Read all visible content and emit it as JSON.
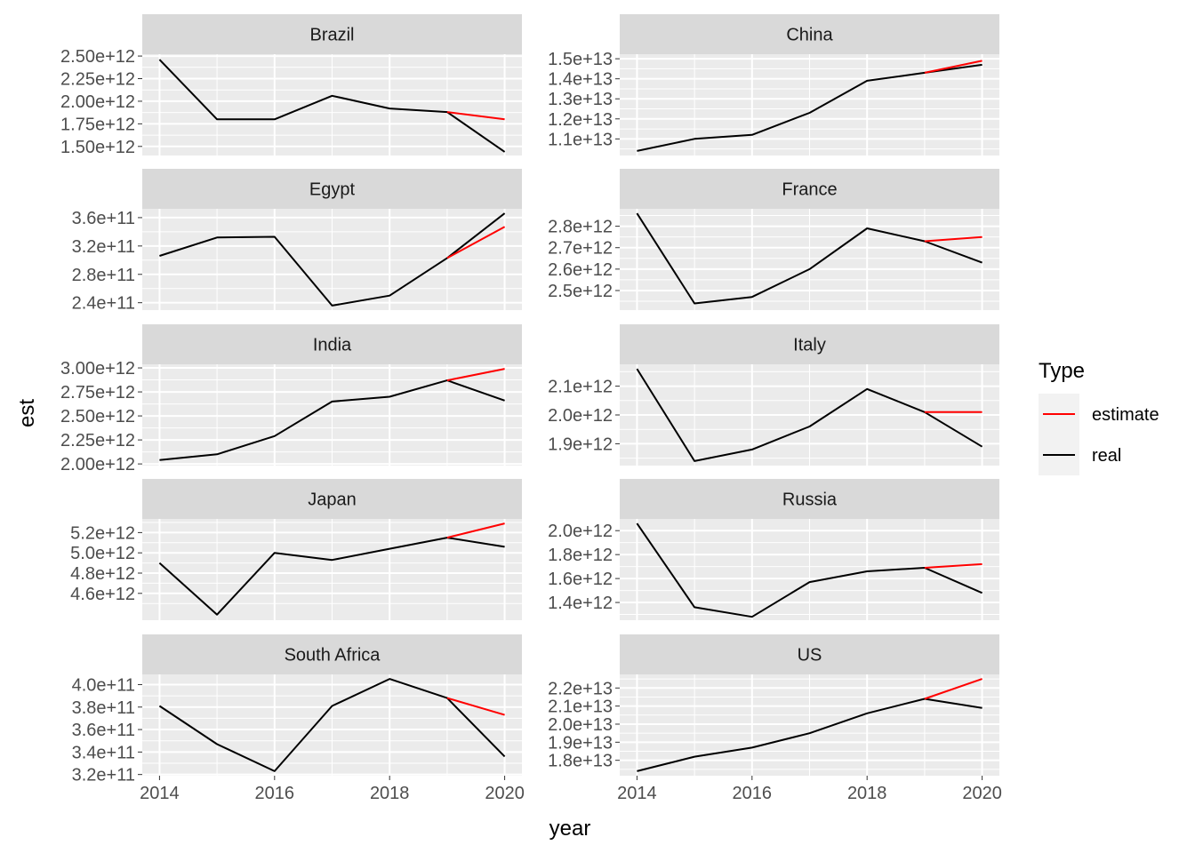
{
  "chart_data": {
    "type": "line",
    "xlabel": "year",
    "ylabel": "est",
    "x_ticks": [
      2014,
      2016,
      2018,
      2020
    ],
    "legend": {
      "title": "Type",
      "entries": [
        {
          "label": "estimate",
          "color": "#ff0000"
        },
        {
          "label": "real",
          "color": "#000000"
        }
      ],
      "position": "right"
    },
    "colors": {
      "panel_bg": "#ebebeb",
      "strip_bg": "#d9d9d9",
      "grid": "#ffffff",
      "estimate": "#ff0000",
      "real": "#000000"
    },
    "panels": [
      {
        "title": "Brazil",
        "ylim": [
          1450000000000.0,
          2470000000000.0
        ],
        "y_ticks": [
          1500000000000.0,
          1750000000000.0,
          2000000000000.0,
          2250000000000.0,
          2500000000000.0
        ],
        "y_tick_labels": [
          "1.50e+12",
          "1.75e+12",
          "2.00e+12",
          "2.25e+12",
          "2.50e+12"
        ],
        "series": [
          {
            "name": "real",
            "x": [
              2014,
              2015,
              2016,
              2017,
              2018,
              2019,
              2020
            ],
            "values": [
              2460000000000.0,
              1800000000000.0,
              1800000000000.0,
              2060000000000.0,
              1920000000000.0,
              1880000000000.0,
              1440000000000.0
            ]
          },
          {
            "name": "estimate",
            "x": [
              2019,
              2020
            ],
            "values": [
              1880000000000.0,
              1800000000000.0
            ]
          }
        ]
      },
      {
        "title": "China",
        "ylim": [
          10400000000000.0,
          15000000000000.0
        ],
        "y_ticks": [
          11000000000000.0,
          12000000000000.0,
          13000000000000.0,
          14000000000000.0,
          15000000000000.0
        ],
        "y_tick_labels": [
          "1.1e+13",
          "1.2e+13",
          "1.3e+13",
          "1.4e+13",
          "1.5e+13"
        ],
        "series": [
          {
            "name": "real",
            "x": [
              2014,
              2015,
              2016,
              2017,
              2018,
              2019,
              2020
            ],
            "values": [
              10400000000000.0,
              11000000000000.0,
              11200000000000.0,
              12300000000000.0,
              13900000000000.0,
              14300000000000.0,
              14700000000000.0
            ]
          },
          {
            "name": "estimate",
            "x": [
              2019,
              2020
            ],
            "values": [
              14300000000000.0,
              14900000000000.0
            ]
          }
        ]
      },
      {
        "title": "Egypt",
        "ylim": [
          236000000000.0,
          366000000000.0
        ],
        "y_ticks": [
          240000000000.0,
          280000000000.0,
          320000000000.0,
          360000000000.0
        ],
        "y_tick_labels": [
          "2.4e+11",
          "2.8e+11",
          "3.2e+11",
          "3.6e+11"
        ],
        "series": [
          {
            "name": "real",
            "x": [
              2014,
              2015,
              2016,
              2017,
              2018,
              2019,
              2020
            ],
            "values": [
              306000000000.0,
              332000000000.0,
              333000000000.0,
              236000000000.0,
              250000000000.0,
              303000000000.0,
              366000000000.0
            ]
          },
          {
            "name": "estimate",
            "x": [
              2019,
              2020
            ],
            "values": [
              303000000000.0,
              347000000000.0
            ]
          }
        ]
      },
      {
        "title": "France",
        "ylim": [
          2430000000000.0,
          2860000000000.0
        ],
        "y_ticks": [
          2500000000000.0,
          2600000000000.0,
          2700000000000.0,
          2800000000000.0
        ],
        "y_tick_labels": [
          "2.5e+12",
          "2.6e+12",
          "2.7e+12",
          "2.8e+12"
        ],
        "series": [
          {
            "name": "real",
            "x": [
              2014,
              2015,
              2016,
              2017,
              2018,
              2019,
              2020
            ],
            "values": [
              2860000000000.0,
              2440000000000.0,
              2470000000000.0,
              2600000000000.0,
              2790000000000.0,
              2730000000000.0,
              2630000000000.0
            ]
          },
          {
            "name": "estimate",
            "x": [
              2019,
              2020
            ],
            "values": [
              2730000000000.0,
              2750000000000.0
            ]
          }
        ]
      },
      {
        "title": "India",
        "ylim": [
          2030000000000.0,
          2990000000000.0
        ],
        "y_ticks": [
          2000000000000.0,
          2250000000000.0,
          2500000000000.0,
          2750000000000.0,
          3000000000000.0
        ],
        "y_tick_labels": [
          "2.00e+12",
          "2.25e+12",
          "2.50e+12",
          "2.75e+12",
          "3.00e+12"
        ],
        "series": [
          {
            "name": "real",
            "x": [
              2014,
              2015,
              2016,
              2017,
              2018,
              2019,
              2020
            ],
            "values": [
              2040000000000.0,
              2100000000000.0,
              2290000000000.0,
              2650000000000.0,
              2700000000000.0,
              2870000000000.0,
              2660000000000.0
            ]
          },
          {
            "name": "estimate",
            "x": [
              2019,
              2020
            ],
            "values": [
              2870000000000.0,
              2990000000000.0
            ]
          }
        ]
      },
      {
        "title": "Italy",
        "ylim": [
          1840000000000.0,
          2160000000000.0
        ],
        "y_ticks": [
          1900000000000.0,
          2000000000000.0,
          2100000000000.0
        ],
        "y_tick_labels": [
          "1.9e+12",
          "2.0e+12",
          "2.1e+12"
        ],
        "series": [
          {
            "name": "real",
            "x": [
              2014,
              2015,
              2016,
              2017,
              2018,
              2019,
              2020
            ],
            "values": [
              2160000000000.0,
              1840000000000.0,
              1880000000000.0,
              1960000000000.0,
              2090000000000.0,
              2010000000000.0,
              1890000000000.0
            ]
          },
          {
            "name": "estimate",
            "x": [
              2019,
              2020
            ],
            "values": [
              2010000000000.0,
              2010000000000.0
            ]
          }
        ]
      },
      {
        "title": "Japan",
        "ylim": [
          4380000000000.0,
          5290000000000.0
        ],
        "y_ticks": [
          4600000000000.0,
          4800000000000.0,
          5000000000000.0,
          5200000000000.0
        ],
        "y_tick_labels": [
          "4.6e+12",
          "4.8e+12",
          "5.0e+12",
          "5.2e+12"
        ],
        "series": [
          {
            "name": "real",
            "x": [
              2014,
              2015,
              2016,
              2017,
              2018,
              2019,
              2020
            ],
            "values": [
              4900000000000.0,
              4390000000000.0,
              5000000000000.0,
              4930000000000.0,
              5040000000000.0,
              5150000000000.0,
              5060000000000.0
            ]
          },
          {
            "name": "estimate",
            "x": [
              2019,
              2020
            ],
            "values": [
              5150000000000.0,
              5290000000000.0
            ]
          }
        ]
      },
      {
        "title": "Russia",
        "ylim": [
          1290000000000.0,
          2060000000000.0
        ],
        "y_ticks": [
          1400000000000.0,
          1600000000000.0,
          1800000000000.0,
          2000000000000.0
        ],
        "y_tick_labels": [
          "1.4e+12",
          "1.6e+12",
          "1.8e+12",
          "2.0e+12"
        ],
        "series": [
          {
            "name": "real",
            "x": [
              2014,
              2015,
              2016,
              2017,
              2018,
              2019,
              2020
            ],
            "values": [
              2060000000000.0,
              1360000000000.0,
              1280000000000.0,
              1570000000000.0,
              1660000000000.0,
              1690000000000.0,
              1480000000000.0
            ]
          },
          {
            "name": "estimate",
            "x": [
              2019,
              2020
            ],
            "values": [
              1690000000000.0,
              1720000000000.0
            ]
          }
        ]
      },
      {
        "title": "South Africa",
        "ylim": [
          323000000000.0,
          405000000000.0
        ],
        "y_ticks": [
          320000000000.0,
          340000000000.0,
          360000000000.0,
          380000000000.0,
          400000000000.0
        ],
        "y_tick_labels": [
          "3.2e+11",
          "3.4e+11",
          "3.6e+11",
          "3.8e+11",
          "4.0e+11"
        ],
        "series": [
          {
            "name": "real",
            "x": [
              2014,
              2015,
              2016,
              2017,
              2018,
              2019,
              2020
            ],
            "values": [
              381000000000.0,
              347000000000.0,
              323000000000.0,
              381000000000.0,
              405000000000.0,
              388000000000.0,
              336000000000.0
            ]
          },
          {
            "name": "estimate",
            "x": [
              2019,
              2020
            ],
            "values": [
              388000000000.0,
              373000000000.0
            ]
          }
        ]
      },
      {
        "title": "US",
        "ylim": [
          17400000000000.0,
          22500000000000.0
        ],
        "y_ticks": [
          18000000000000.0,
          19000000000000.0,
          20000000000000.0,
          21000000000000.0,
          22000000000000.0
        ],
        "y_tick_labels": [
          "1.8e+13",
          "1.9e+13",
          "2.0e+13",
          "2.1e+13",
          "2.2e+13"
        ],
        "series": [
          {
            "name": "real",
            "x": [
              2014,
              2015,
              2016,
              2017,
              2018,
              2019,
              2020
            ],
            "values": [
              17400000000000.0,
              18200000000000.0,
              18700000000000.0,
              19500000000000.0,
              20600000000000.0,
              21400000000000.0,
              20900000000000.0
            ]
          },
          {
            "name": "estimate",
            "x": [
              2019,
              2020
            ],
            "values": [
              21400000000000.0,
              22500000000000.0
            ]
          }
        ]
      }
    ]
  }
}
